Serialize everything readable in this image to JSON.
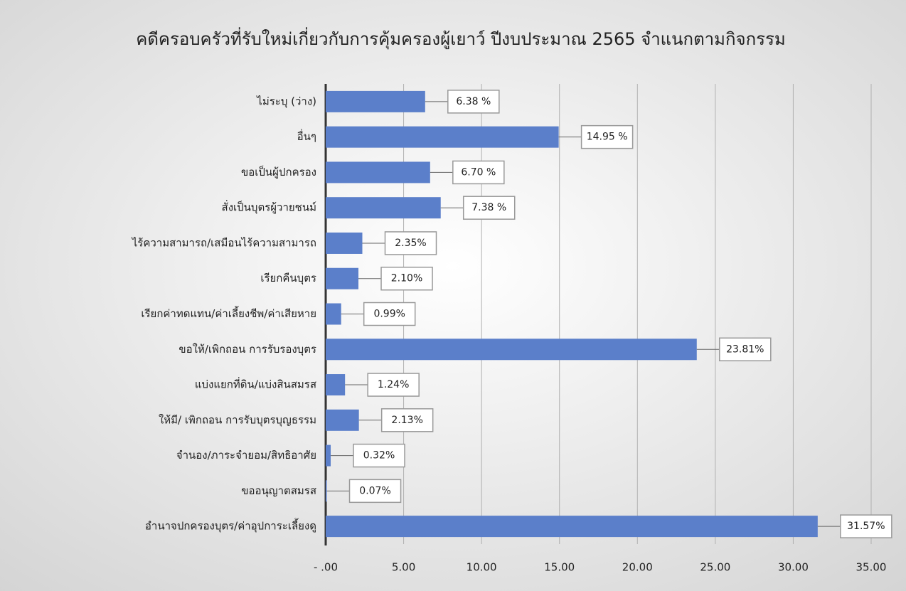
{
  "chart_data": {
    "type": "bar",
    "orientation": "horizontal",
    "title": "คดีครอบครัวที่รับใหม่เกี่ยวกับการคุ้มครองผู้เยาว์ ปีงบประมาณ 2565 จำแนกตามกิจกรรม",
    "categories": [
      "ไม่ระบุ (ว่าง)",
      "อื่นๆ",
      "ขอเป็นผู้ปกครอง",
      "สั่งเป็นบุตรผู้วายชนม์",
      "ไร้ความสามารถ/เสมือนไร้ความสามารถ",
      "เรียกคืนบุตร",
      "เรียกค่าทดแทน/ค่าเลี้ยงชีพ/ค่าเสียหาย",
      "ขอให้/เพิกถอน การรับรองบุตร",
      "แบ่งแยกที่ดิน/แบ่งสินสมรส",
      "ให้มี/ เพิกถอน การรับบุตรบุญธรรม",
      "จำนอง/ภาระจำยอม/สิทธิอาศัย",
      "ขออนุญาตสมรส",
      "อำนาจปกครองบุตร/ค่าอุปการะเลี้ยงดู"
    ],
    "values": [
      6.38,
      14.95,
      6.7,
      7.38,
      2.35,
      2.1,
      0.99,
      23.81,
      1.24,
      2.13,
      0.32,
      0.07,
      31.57
    ],
    "value_labels": [
      "6.38 %",
      "14.95 %",
      "6.70 %",
      "7.38 %",
      "2.35%",
      "2.10%",
      "0.99%",
      "23.81%",
      "1.24%",
      "2.13%",
      "0.32%",
      "0.07%",
      "31.57%"
    ],
    "color": "#5b7fca",
    "xlim": [
      0,
      35
    ],
    "xticks": [
      {
        "value": 0,
        "label": "- .00"
      },
      {
        "value": 5,
        "label": "5.00"
      },
      {
        "value": 10,
        "label": "10.00"
      },
      {
        "value": 15,
        "label": "15.00"
      },
      {
        "value": 20,
        "label": "20.00"
      },
      {
        "value": 25,
        "label": "25.00"
      },
      {
        "value": 30,
        "label": "30.00"
      },
      {
        "value": 35,
        "label": "35.00"
      }
    ],
    "grid": true
  }
}
